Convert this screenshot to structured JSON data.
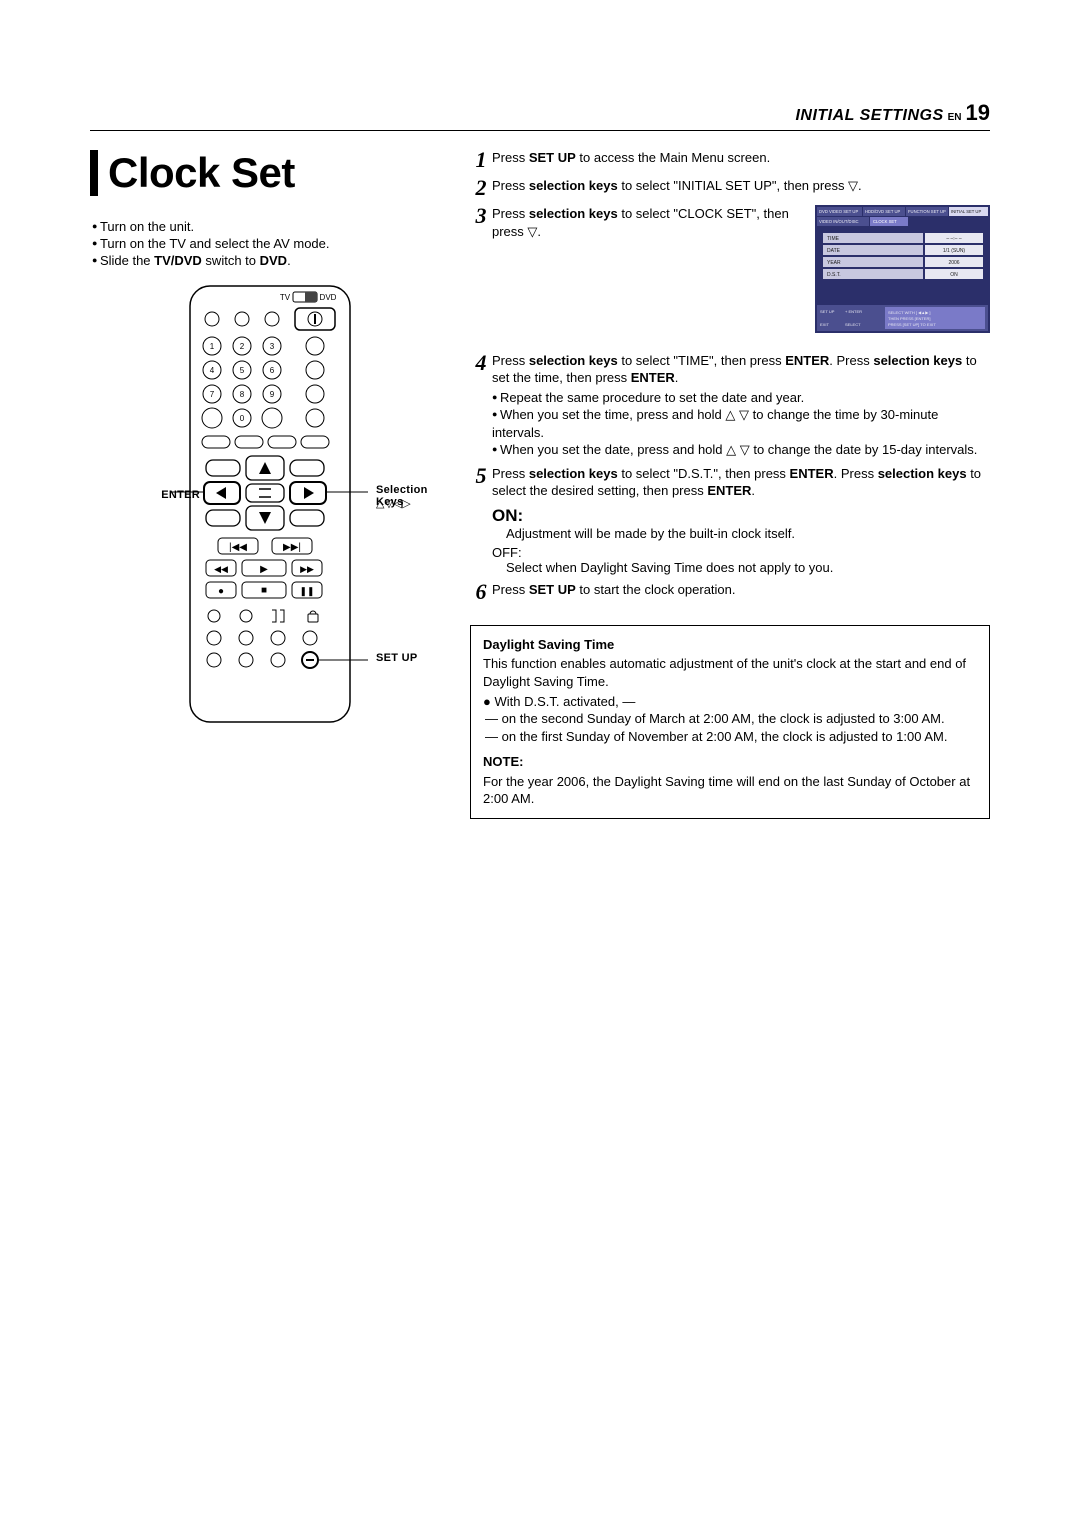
{
  "header": {
    "category": "INITIAL SETTINGS",
    "lang": "EN",
    "page": "19"
  },
  "title": "Clock Set",
  "prep": {
    "items": [
      "Turn on the unit.",
      "Turn on the TV and select the AV mode.",
      "Slide the <b>TV/DVD</b> switch to <b>DVD</b>."
    ]
  },
  "remote": {
    "labels": {
      "enter": "ENTER",
      "selkeys": "Selection Keys",
      "arrows": "△▽◁▷",
      "setup": "SET UP"
    },
    "switch_left": "TV",
    "switch_right": "DVD"
  },
  "steps": [
    {
      "n": "1",
      "html": "Press <b>SET UP</b> to access the Main Menu screen."
    },
    {
      "n": "2",
      "html": "Press <b>selection keys</b> to select \"INITIAL SET UP\", then press ▽."
    },
    {
      "n": "3",
      "html": "Press <b>selection keys</b> to select \"CLOCK SET\", then press ▽."
    },
    {
      "n": "4",
      "html": "Press <b>selection keys</b> to select \"TIME\", then press <b>ENTER</b>. Press <b>selection keys</b> to set the time, then press <b>ENTER</b>.",
      "subs": [
        "Repeat the same procedure to set the date and year.",
        "When you set the time, press and hold △ ▽ to change the time by 30-minute intervals.",
        "When you set the date, press and hold △ ▽ to change the date by 15-day intervals."
      ]
    },
    {
      "n": "5",
      "html": "Press <b>selection keys</b> to select \"D.S.T.\", then press <b>ENTER</b>. Press <b>selection keys</b> to select the desired setting, then press <b>ENTER</b>."
    },
    {
      "n": "6",
      "html": "Press <b>SET UP</b> to start the clock operation."
    }
  ],
  "onoff": {
    "on_label": "ON",
    "on_text": "Adjustment will be made by the built-in clock itself.",
    "off_label": "OFF:",
    "off_text": "Select when Daylight Saving Time does not apply to you."
  },
  "dst_box": {
    "heading": "Daylight Saving Time",
    "intro": "This function enables automatic adjustment of the unit's clock at the start and end of Daylight Saving Time.",
    "activated": "With D.S.T. activated, —",
    "rules": [
      "on the second Sunday of March at 2:00 AM, the clock is adjusted to 3:00 AM.",
      "on the first Sunday of November at 2:00 AM, the clock is adjusted to 1:00 AM."
    ],
    "note_h": "NOTE:",
    "note": "For the year 2006, the Daylight Saving time will end on the last Sunday of October at 2:00 AM."
  },
  "menu_screenshot": {
    "tabs": [
      "DVD VIDEO SET UP",
      "HDD/DVD SET UP",
      "FUNCTION SET UP",
      "INITIAL SET UP"
    ],
    "subtabs": [
      "VIDEO IN/OUT/DISC",
      "CLOCK SET"
    ],
    "rows": [
      {
        "k": "TIME",
        "v": "– –:– –"
      },
      {
        "k": "DATE",
        "v": "1/1 (SUN)"
      },
      {
        "k": "YEAR",
        "v": "2006"
      },
      {
        "k": "D.S.T.",
        "v": "ON"
      }
    ],
    "footer": {
      "l1a": "SET UP",
      "l1b": "+ ENTER",
      "l1c": "SELECT WITH [ ◀▲▶ ]",
      "l2a": "",
      "l2b": "",
      "l2c": "THEN PRESS [ENTER]",
      "l3a": "EXIT",
      "l3b": "SELECT",
      "l3c": "PRESS [SET UP] TO EXIT"
    },
    "colors": {
      "bg": "#2b2f6a",
      "tab": "#4b4f8f",
      "tab_active": "#d9d9f0",
      "row_bg": "#c8c8e0",
      "row_val_bg": "#e8e8f2",
      "text_dark": "#1a1a1a",
      "text_light": "#e8e8f2",
      "highlight": "#7a7ac8"
    }
  }
}
